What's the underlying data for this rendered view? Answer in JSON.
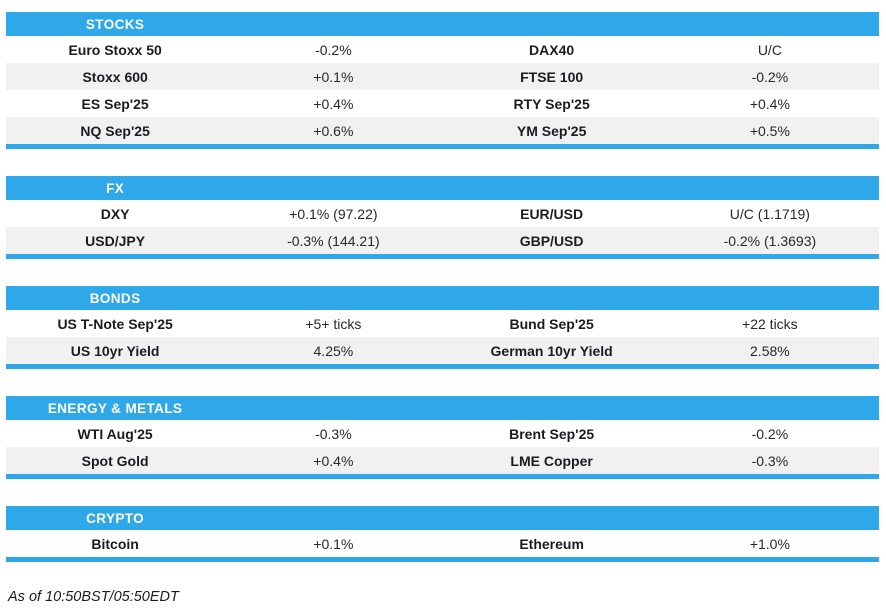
{
  "colors": {
    "accent": "#2fa8e9",
    "row_alt": "#f1f1f1",
    "header_text": "#ffffff",
    "label_text": "#1b1c20",
    "value_text": "#27282c"
  },
  "sections": [
    {
      "title": "STOCKS",
      "rows": [
        {
          "left_label": "Euro Stoxx 50",
          "left_value": "-0.2%",
          "right_label": "DAX40",
          "right_value": "U/C"
        },
        {
          "left_label": "Stoxx 600",
          "left_value": "+0.1%",
          "right_label": "FTSE 100",
          "right_value": "-0.2%"
        },
        {
          "left_label": "ES Sep'25",
          "left_value": "+0.4%",
          "right_label": "RTY Sep'25",
          "right_value": "+0.4%"
        },
        {
          "left_label": "NQ Sep'25",
          "left_value": "+0.6%",
          "right_label": "YM Sep'25",
          "right_value": "+0.5%"
        }
      ]
    },
    {
      "title": "FX",
      "rows": [
        {
          "left_label": "DXY",
          "left_value": "+0.1% (97.22)",
          "right_label": "EUR/USD",
          "right_value": "U/C (1.1719)"
        },
        {
          "left_label": "USD/JPY",
          "left_value": "-0.3% (144.21)",
          "right_label": "GBP/USD",
          "right_value": "-0.2% (1.3693)"
        }
      ]
    },
    {
      "title": "BONDS",
      "rows": [
        {
          "left_label": "US T-Note Sep'25",
          "left_value": "+5+ ticks",
          "right_label": "Bund Sep'25",
          "right_value": "+22 ticks"
        },
        {
          "left_label": "US 10yr Yield",
          "left_value": "4.25%",
          "right_label": "German 10yr Yield",
          "right_value": "2.58%"
        }
      ]
    },
    {
      "title": "ENERGY & METALS",
      "rows": [
        {
          "left_label": "WTI Aug'25",
          "left_value": "-0.3%",
          "right_label": "Brent Sep'25",
          "right_value": "-0.2%"
        },
        {
          "left_label": "Spot Gold",
          "left_value": "+0.4%",
          "right_label": "LME Copper",
          "right_value": "-0.3%"
        }
      ]
    },
    {
      "title": "CRYPTO",
      "rows": [
        {
          "left_label": "Bitcoin",
          "left_value": "+0.1%",
          "right_label": "Ethereum",
          "right_value": "+1.0%"
        }
      ]
    }
  ],
  "footer": {
    "text": "As of 10:50BST/05:50EDT"
  }
}
